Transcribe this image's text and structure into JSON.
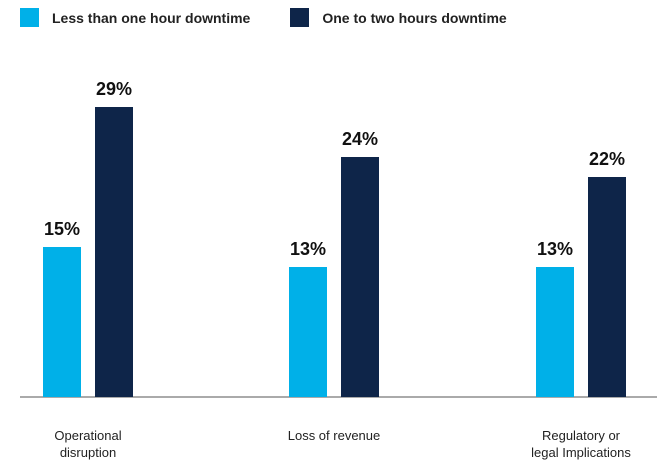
{
  "legend": [
    {
      "name": "Less than one hour downtime",
      "color": "#00B0E8"
    },
    {
      "name": "One to two hours downtime",
      "color": "#0E2549"
    }
  ],
  "chart_data": {
    "type": "bar",
    "categories": [
      [
        "Operational",
        "disruption"
      ],
      [
        "Loss of revenue"
      ],
      [
        "Regulatory or",
        "legal Implications"
      ]
    ],
    "series": [
      {
        "name": "Less than one hour downtime",
        "color": "#00B0E8",
        "values": [
          15,
          13,
          13
        ],
        "labels": [
          "15%",
          "13%",
          "13%"
        ]
      },
      {
        "name": "One to two hours downtime",
        "color": "#0E2549",
        "values": [
          29,
          24,
          22
        ],
        "labels": [
          "29%",
          "24%",
          "22%"
        ]
      }
    ],
    "ylim": [
      0,
      30
    ],
    "grid": false,
    "legend_position": "top-left"
  }
}
